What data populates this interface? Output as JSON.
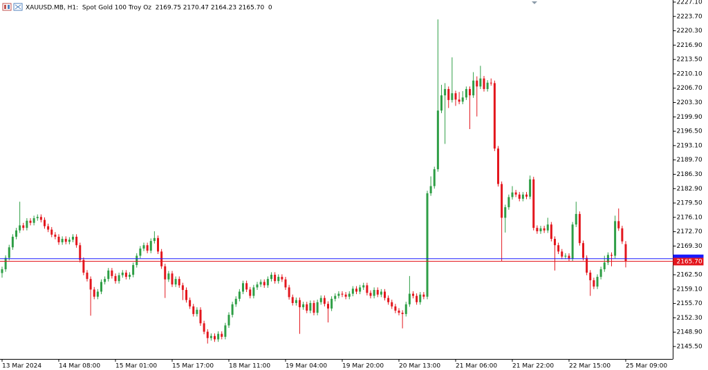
{
  "chart_data": {
    "type": "candlestick",
    "title": "XAUUSD.MB, H1:  Spot Gold 100 Troy Oz  2169.75 2170.47 2164.23 2165.70  0",
    "up_color": "#2e9e45",
    "down_color": "#e3161d",
    "ylim": [
      2142.55,
      2227.1
    ],
    "yticks": [
      {
        "value": 2227.1,
        "label": "2227.10"
      },
      {
        "value": 2223.7,
        "label": "2223.70"
      },
      {
        "value": 2220.3,
        "label": "2220.30"
      },
      {
        "value": 2216.9,
        "label": "2216.90"
      },
      {
        "value": 2213.5,
        "label": "2213.50"
      },
      {
        "value": 2210.1,
        "label": "2210.10"
      },
      {
        "value": 2206.7,
        "label": "2206.70"
      },
      {
        "value": 2203.3,
        "label": "2203.30"
      },
      {
        "value": 2199.9,
        "label": "2199.90"
      },
      {
        "value": 2196.5,
        "label": "2196.50"
      },
      {
        "value": 2193.1,
        "label": "2193.10"
      },
      {
        "value": 2189.7,
        "label": "2189.70"
      },
      {
        "value": 2186.3,
        "label": "2186.30"
      },
      {
        "value": 2182.9,
        "label": "2182.90"
      },
      {
        "value": 2179.5,
        "label": "2179.50"
      },
      {
        "value": 2176.1,
        "label": "2176.10"
      },
      {
        "value": 2172.7,
        "label": "2172.70"
      },
      {
        "value": 2169.3,
        "label": "2169.30"
      },
      {
        "value": 2162.5,
        "label": "2162.50"
      },
      {
        "value": 2159.1,
        "label": "2159.10"
      },
      {
        "value": 2155.7,
        "label": "2155.70"
      },
      {
        "value": 2152.3,
        "label": "2152.30"
      },
      {
        "value": 2148.9,
        "label": "2148.90"
      },
      {
        "value": 2145.5,
        "label": "2145.50"
      }
    ],
    "bid": {
      "value": 2165.7,
      "label": "2165.70",
      "color": "#e3161d"
    },
    "ask": {
      "value": 2166.3,
      "color": "#1a1aff"
    },
    "categories": [
      "13 Mar 2024",
      null,
      null,
      null,
      null,
      null,
      null,
      null,
      null,
      null,
      null,
      null,
      null,
      null,
      null,
      null,
      "14 Mar 08:00",
      null,
      null,
      null,
      null,
      null,
      null,
      null,
      null,
      null,
      null,
      null,
      null,
      null,
      null,
      null,
      "15 Mar 01:00",
      null,
      null,
      null,
      null,
      null,
      null,
      null,
      null,
      null,
      null,
      null,
      null,
      null,
      null,
      null,
      "15 Mar 17:00",
      null,
      null,
      null,
      null,
      null,
      null,
      null,
      null,
      null,
      null,
      null,
      null,
      null,
      null,
      null,
      "18 Mar 11:00",
      null,
      null,
      null,
      null,
      null,
      null,
      null,
      null,
      null,
      null,
      null,
      null,
      null,
      null,
      null,
      "19 Mar 04:00",
      null,
      null,
      null,
      null,
      null,
      null,
      null,
      null,
      null,
      null,
      null,
      null,
      null,
      null,
      null,
      "19 Mar 20:00",
      null,
      null,
      null,
      null,
      null,
      null,
      null,
      null,
      null,
      null,
      null,
      null,
      null,
      null,
      null,
      "20 Mar 13:00",
      null,
      null,
      null,
      null,
      null,
      null,
      null,
      null,
      null,
      null,
      null,
      null,
      null,
      null,
      null,
      "21 Mar 06:00",
      null,
      null,
      null,
      null,
      null,
      null,
      null,
      null,
      null,
      null,
      null,
      null,
      null,
      null,
      null,
      "21 Mar 22:00",
      null,
      null,
      null,
      null,
      null,
      null,
      null,
      null,
      null,
      null,
      null,
      null,
      null,
      null,
      null,
      "22 Mar 15:00",
      null,
      null,
      null,
      null,
      null,
      null,
      null,
      null,
      null,
      null,
      null,
      null,
      null,
      null,
      null,
      "25 Mar 09:00"
    ],
    "open": [
      2162.9,
      2163.8,
      2166.5,
      2169.0,
      2171.5,
      2173.0,
      2174.2,
      2173.6,
      2175.3,
      2174.8,
      2175.9,
      2176.2,
      2175.5,
      2174.0,
      2173.2,
      2172.0,
      2171.5,
      2170.2,
      2171.0,
      2170.3,
      2170.8,
      2171.5,
      2169.5,
      2166.0,
      2163.0,
      2161.5,
      2159.0,
      2157.3,
      2158.5,
      2160.8,
      2161.5,
      2163.5,
      2162.2,
      2161.0,
      2162.4,
      2163.0,
      2162.0,
      2162.5,
      2164.8,
      2167.0,
      2168.7,
      2169.5,
      2168.2,
      2170.5,
      2171.2,
      2168.0,
      2164.5,
      2161.4,
      2162.8,
      2160.2,
      2161.5,
      2160.0,
      2158.9,
      2156.5,
      2155.0,
      2153.2,
      2154.2,
      2151.0,
      2149.0,
      2147.5,
      2148.0,
      2147.2,
      2148.5,
      2147.8,
      2150.5,
      2153.0,
      2155.5,
      2156.8,
      2158.5,
      2160.5,
      2159.0,
      2157.5,
      2159.5,
      2160.2,
      2160.8,
      2160.0,
      2161.5,
      2162.5,
      2161.0,
      2162.0,
      2161.4,
      2159.5,
      2157.2,
      2155.8,
      2156.5,
      2154.8,
      2155.5,
      2154.0,
      2155.8,
      2153.5,
      2156.0,
      2157.0,
      2155.6,
      2154.5,
      2156.8,
      2157.5,
      2158.0,
      2157.8,
      2157.3,
      2158.0,
      2159.2,
      2158.5,
      2159.5,
      2160.0,
      2158.2,
      2157.5,
      2158.9,
      2157.8,
      2158.5,
      2157.0,
      2156.0,
      2155.0,
      2154.0,
      2153.5,
      2153.2,
      2155.5,
      2158.0,
      2157.5,
      2156.0,
      2157.8,
      2157.3,
      2181.8,
      2183.5,
      2187.5,
      2201.4,
      2205.0,
      2206.5,
      2203.9,
      2205.5,
      2204.0,
      2203.5,
      2204.5,
      2206.5,
      2205.0,
      2208.5,
      2207.1,
      2209.0,
      2206.5,
      2208.0,
      2207.9,
      2192.4,
      2184.0,
      2176.0,
      2178.5,
      2180.9,
      2182.0,
      2181.5,
      2180.5,
      2181.5,
      2181.0,
      2185.1,
      2173.6,
      2172.8,
      2173.5,
      2173.0,
      2174.4,
      2171.0,
      2169.5,
      2168.0,
      2166.8,
      2167.0,
      2166.3,
      2174.4,
      2176.9,
      2170.0,
      2166.5,
      2163.0,
      2161.2,
      2159.7,
      2162.0,
      2163.8,
      2165.4,
      2167.2,
      2167.0,
      2175.2,
      2173.5,
      2169.75
    ],
    "high": [
      2164.4,
      2167.1,
      2169.6,
      2172.1,
      2173.6,
      2179.8,
      2174.8,
      2175.9,
      2175.9,
      2176.5,
      2176.8,
      2176.8,
      2176.1,
      2174.6,
      2173.8,
      2172.6,
      2172.1,
      2171.6,
      2171.6,
      2171.4,
      2172.1,
      2172.1,
      2170.1,
      2166.6,
      2163.6,
      2162.1,
      2159.6,
      2159.1,
      2161.4,
      2162.1,
      2164.1,
      2164.1,
      2162.8,
      2163.0,
      2163.6,
      2163.6,
      2163.1,
      2165.4,
      2167.6,
      2169.3,
      2170.1,
      2170.1,
      2171.1,
      2172.8,
      2171.8,
      2168.6,
      2165.1,
      2163.4,
      2163.4,
      2162.1,
      2162.1,
      2160.6,
      2159.5,
      2157.1,
      2155.6,
      2154.8,
      2154.8,
      2151.6,
      2149.6,
      2148.6,
      2148.6,
      2149.1,
      2149.1,
      2151.1,
      2153.6,
      2156.1,
      2157.4,
      2159.1,
      2161.1,
      2161.1,
      2159.6,
      2160.1,
      2160.8,
      2161.4,
      2161.4,
      2162.1,
      2163.1,
      2163.1,
      2162.6,
      2162.6,
      2162.0,
      2160.1,
      2157.8,
      2157.1,
      2157.1,
      2156.1,
      2156.1,
      2156.4,
      2156.4,
      2156.6,
      2157.6,
      2157.6,
      2156.2,
      2157.4,
      2158.1,
      2158.6,
      2158.6,
      2158.4,
      2158.6,
      2159.8,
      2159.8,
      2160.1,
      2160.6,
      2160.6,
      2158.8,
      2159.5,
      2159.5,
      2159.1,
      2159.1,
      2157.6,
      2156.6,
      2155.6,
      2154.6,
      2154.1,
      2156.1,
      2162.2,
      2158.6,
      2158.1,
      2158.4,
      2158.4,
      2182.4,
      2185.8,
      2188.1,
      2223.0,
      2207.5,
      2207.9,
      2207.1,
      2214.0,
      2206.1,
      2205.8,
      2206.0,
      2207.1,
      2207.1,
      2210.5,
      2209.5,
      2212.0,
      2209.6,
      2208.6,
      2209.0,
      2208.5,
      2193.0,
      2184.6,
      2179.1,
      2181.5,
      2183.5,
      2182.6,
      2182.1,
      2182.1,
      2182.1,
      2186.0,
      2185.7,
      2174.2,
      2174.1,
      2174.1,
      2176.0,
      2175.0,
      2171.6,
      2170.1,
      2168.6,
      2167.6,
      2167.6,
      2175.0,
      2179.8,
      2177.5,
      2170.6,
      2167.1,
      2163.6,
      2161.8,
      2162.6,
      2164.4,
      2167.0,
      2167.8,
      2167.8,
      2176.5,
      2178.2,
      2174.1,
      2170.47
    ],
    "low": [
      2161.8,
      2163.2,
      2165.9,
      2168.4,
      2170.9,
      2172.4,
      2173.0,
      2173.0,
      2174.2,
      2174.2,
      2175.3,
      2174.9,
      2173.4,
      2172.6,
      2171.4,
      2170.9,
      2169.6,
      2169.6,
      2169.7,
      2169.7,
      2170.2,
      2168.9,
      2165.4,
      2162.4,
      2160.9,
      2152.8,
      2156.7,
      2156.7,
      2157.9,
      2160.2,
      2160.9,
      2161.6,
      2160.4,
      2160.4,
      2161.8,
      2161.4,
      2161.4,
      2161.9,
      2164.2,
      2166.4,
      2168.1,
      2167.6,
      2167.6,
      2169.9,
      2167.4,
      2163.9,
      2157.0,
      2160.8,
      2159.6,
      2159.6,
      2159.4,
      2156.5,
      2155.9,
      2154.4,
      2152.6,
      2152.6,
      2150.4,
      2148.4,
      2146.2,
      2146.9,
      2146.6,
      2146.6,
      2147.2,
      2147.2,
      2149.9,
      2152.4,
      2154.9,
      2156.2,
      2157.9,
      2158.4,
      2156.9,
      2156.9,
      2158.9,
      2159.6,
      2159.4,
      2159.4,
      2160.9,
      2160.4,
      2160.4,
      2160.8,
      2158.9,
      2156.6,
      2155.2,
      2155.2,
      2148.5,
      2154.2,
      2153.4,
      2153.4,
      2152.9,
      2152.9,
      2155.4,
      2155.0,
      2151.2,
      2153.9,
      2156.2,
      2156.9,
      2157.2,
      2156.7,
      2156.7,
      2157.4,
      2157.9,
      2157.9,
      2158.9,
      2157.6,
      2156.9,
      2156.9,
      2157.2,
      2157.2,
      2156.4,
      2155.4,
      2154.4,
      2153.4,
      2152.9,
      2149.8,
      2152.6,
      2154.9,
      2156.9,
      2155.4,
      2155.4,
      2156.7,
      2156.7,
      2181.2,
      2182.9,
      2186.9,
      2200.8,
      2193.5,
      2202.0,
      2203.3,
      2202.5,
      2202.9,
      2202.9,
      2203.9,
      2197.0,
      2204.4,
      2200.0,
      2206.5,
      2205.9,
      2205.9,
      2207.3,
      2191.8,
      2183.4,
      2165.7,
      2172.5,
      2177.9,
      2180.3,
      2180.9,
      2179.9,
      2179.9,
      2180.4,
      2180.4,
      2173.0,
      2172.2,
      2172.2,
      2172.4,
      2172.4,
      2170.4,
      2163.5,
      2167.4,
      2166.2,
      2166.2,
      2165.7,
      2165.7,
      2173.8,
      2169.4,
      2165.9,
      2162.4,
      2157.5,
      2159.1,
      2159.1,
      2161.4,
      2163.2,
      2164.8,
      2164.5,
      2166.4,
      2172.9,
      2169.8,
      2164.23
    ],
    "close": [
      2163.8,
      2166.5,
      2169.0,
      2171.5,
      2173.0,
      2174.2,
      2173.6,
      2175.3,
      2174.8,
      2175.9,
      2176.2,
      2175.5,
      2174.0,
      2173.2,
      2172.0,
      2171.5,
      2170.2,
      2171.0,
      2170.3,
      2170.8,
      2171.5,
      2169.5,
      2166.0,
      2163.0,
      2161.5,
      2159.0,
      2157.3,
      2158.5,
      2160.8,
      2161.5,
      2163.5,
      2162.2,
      2161.0,
      2162.4,
      2163.0,
      2162.0,
      2162.5,
      2164.8,
      2167.0,
      2168.7,
      2169.5,
      2168.2,
      2170.5,
      2171.2,
      2168.0,
      2164.5,
      2161.4,
      2162.8,
      2160.2,
      2161.5,
      2160.0,
      2158.9,
      2156.5,
      2155.0,
      2153.2,
      2154.2,
      2151.0,
      2149.0,
      2147.5,
      2148.0,
      2147.2,
      2148.5,
      2147.8,
      2150.5,
      2153.0,
      2155.5,
      2156.8,
      2158.5,
      2160.5,
      2159.0,
      2157.5,
      2159.5,
      2160.2,
      2160.8,
      2160.0,
      2161.5,
      2162.5,
      2161.0,
      2162.0,
      2161.4,
      2159.5,
      2157.2,
      2155.8,
      2156.5,
      2154.8,
      2155.5,
      2154.0,
      2155.8,
      2153.5,
      2156.0,
      2157.0,
      2155.6,
      2154.5,
      2156.8,
      2157.5,
      2158.0,
      2157.8,
      2157.3,
      2158.0,
      2159.2,
      2158.5,
      2159.5,
      2160.0,
      2158.2,
      2157.5,
      2158.9,
      2157.8,
      2158.5,
      2157.0,
      2156.0,
      2155.0,
      2154.0,
      2153.5,
      2153.2,
      2155.5,
      2158.0,
      2157.5,
      2156.0,
      2157.8,
      2157.3,
      2181.8,
      2183.5,
      2187.5,
      2201.4,
      2205.0,
      2206.5,
      2203.9,
      2205.5,
      2204.0,
      2203.5,
      2204.5,
      2206.5,
      2205.0,
      2208.5,
      2207.1,
      2209.0,
      2206.5,
      2208.0,
      2207.9,
      2192.4,
      2184.0,
      2176.0,
      2178.5,
      2180.9,
      2182.0,
      2181.5,
      2180.5,
      2181.5,
      2181.0,
      2185.1,
      2173.6,
      2172.8,
      2173.5,
      2173.0,
      2174.4,
      2171.0,
      2169.5,
      2168.0,
      2166.8,
      2167.0,
      2166.3,
      2174.4,
      2176.9,
      2170.0,
      2166.5,
      2163.0,
      2161.2,
      2159.7,
      2162.0,
      2163.8,
      2165.4,
      2167.2,
      2167.0,
      2175.2,
      2173.5,
      2170.4,
      2165.7
    ]
  }
}
